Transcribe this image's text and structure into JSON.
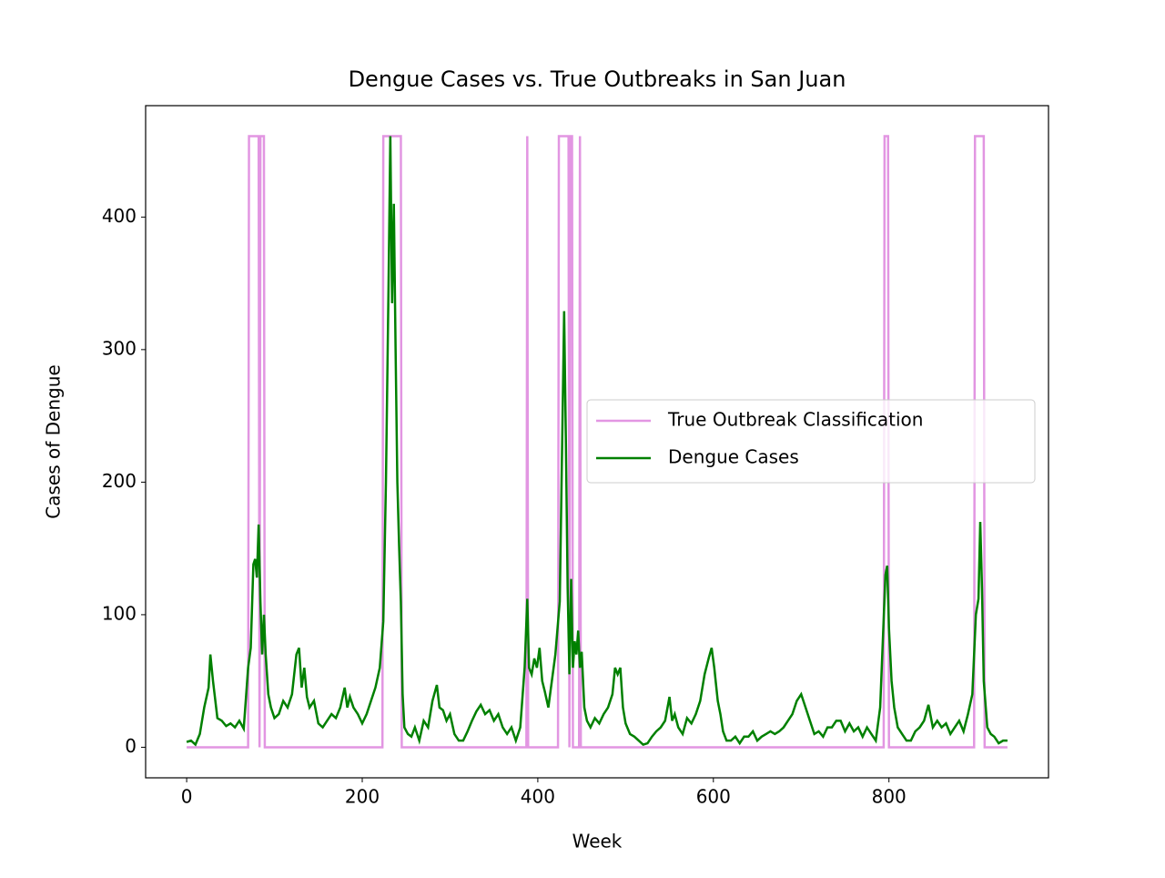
{
  "chart_data": {
    "type": "line",
    "title": "Dengue Cases vs. True Outbreaks in San Juan",
    "x_label": "Week",
    "y_label": "Cases of Dengue",
    "xlim": [
      -46.75,
      981.75
    ],
    "ylim": [
      -23.05,
      484.05
    ],
    "xticks": [
      0,
      200,
      400,
      600,
      800
    ],
    "yticks": [
      0,
      100,
      200,
      300,
      400
    ],
    "legend": "center right",
    "series": [
      {
        "name": "True Outbreak Classification",
        "color": "#e296e2",
        "x": [
          0,
          70,
          71,
          82,
          83,
          84,
          88,
          89,
          223,
          224,
          244,
          245,
          387,
          388,
          389,
          423,
          424,
          435,
          436,
          437,
          439,
          440,
          447,
          448,
          449,
          794,
          795,
          799,
          800,
          897,
          898,
          908,
          909,
          935
        ],
        "values": [
          0,
          0,
          461,
          461,
          0,
          461,
          461,
          0,
          0,
          461,
          461,
          0,
          0,
          461,
          0,
          0,
          461,
          461,
          0,
          461,
          461,
          0,
          0,
          461,
          0,
          0,
          461,
          461,
          0,
          0,
          461,
          461,
          0,
          0
        ]
      },
      {
        "name": "Dengue Cases",
        "color": "#008000",
        "x": [
          0,
          5,
          10,
          15,
          20,
          25,
          27,
          30,
          35,
          40,
          45,
          50,
          55,
          60,
          65,
          70,
          73,
          76,
          78,
          80,
          82,
          84,
          86,
          88,
          90,
          93,
          96,
          100,
          105,
          110,
          115,
          120,
          125,
          128,
          131,
          134,
          137,
          140,
          145,
          150,
          155,
          160,
          165,
          170,
          175,
          180,
          183,
          186,
          190,
          195,
          200,
          205,
          210,
          215,
          220,
          224,
          227,
          230,
          232,
          234,
          236,
          238,
          240,
          242,
          244,
          246,
          248,
          252,
          256,
          260,
          265,
          270,
          275,
          280,
          285,
          288,
          292,
          296,
          300,
          305,
          310,
          315,
          320,
          325,
          330,
          335,
          340,
          345,
          350,
          355,
          360,
          365,
          370,
          375,
          380,
          385,
          388,
          390,
          393,
          396,
          399,
          402,
          405,
          408,
          412,
          416,
          420,
          425,
          428,
          430,
          432,
          434,
          436,
          438,
          440,
          442,
          444,
          446,
          448,
          450,
          453,
          456,
          460,
          465,
          470,
          475,
          480,
          485,
          488,
          491,
          494,
          497,
          500,
          505,
          510,
          515,
          520,
          525,
          530,
          535,
          540,
          545,
          550,
          553,
          556,
          560,
          565,
          570,
          575,
          580,
          585,
          590,
          595,
          598,
          601,
          605,
          608,
          611,
          615,
          620,
          625,
          630,
          635,
          640,
          645,
          650,
          655,
          660,
          665,
          670,
          675,
          680,
          685,
          690,
          695,
          700,
          705,
          710,
          715,
          720,
          725,
          730,
          735,
          740,
          745,
          750,
          755,
          760,
          765,
          770,
          775,
          780,
          785,
          790,
          793,
          796,
          798,
          800,
          803,
          806,
          810,
          815,
          820,
          825,
          830,
          835,
          840,
          845,
          850,
          855,
          860,
          865,
          870,
          875,
          880,
          885,
          890,
          895,
          899,
          902,
          904,
          906,
          908,
          912,
          916,
          920,
          925,
          930,
          935
        ],
        "values": [
          4,
          5,
          2,
          10,
          30,
          45,
          70,
          50,
          22,
          20,
          16,
          18,
          15,
          20,
          14,
          60,
          75,
          138,
          142,
          128,
          168,
          110,
          70,
          100,
          70,
          40,
          30,
          22,
          25,
          35,
          30,
          40,
          70,
          75,
          45,
          60,
          38,
          30,
          35,
          18,
          15,
          20,
          25,
          22,
          30,
          45,
          30,
          38,
          30,
          25,
          18,
          25,
          35,
          45,
          60,
          95,
          200,
          350,
          461,
          335,
          410,
          300,
          200,
          152,
          110,
          40,
          15,
          10,
          8,
          15,
          5,
          20,
          15,
          35,
          47,
          30,
          28,
          20,
          25,
          10,
          5,
          5,
          12,
          20,
          27,
          32,
          25,
          28,
          20,
          25,
          15,
          10,
          15,
          5,
          15,
          60,
          112,
          60,
          55,
          67,
          60,
          75,
          50,
          42,
          30,
          50,
          70,
          110,
          240,
          329,
          230,
          120,
          55,
          127,
          60,
          80,
          70,
          88,
          60,
          72,
          30,
          20,
          15,
          22,
          18,
          25,
          30,
          40,
          60,
          55,
          60,
          30,
          18,
          10,
          8,
          5,
          2,
          3,
          8,
          12,
          15,
          20,
          38,
          20,
          25,
          15,
          10,
          22,
          18,
          25,
          35,
          55,
          68,
          75,
          60,
          35,
          25,
          12,
          5,
          5,
          8,
          3,
          8,
          8,
          12,
          5,
          8,
          10,
          12,
          10,
          12,
          15,
          20,
          25,
          35,
          40,
          30,
          20,
          10,
          12,
          8,
          15,
          15,
          20,
          20,
          12,
          18,
          12,
          15,
          8,
          15,
          10,
          5,
          30,
          80,
          130,
          137,
          90,
          50,
          30,
          15,
          10,
          5,
          5,
          12,
          15,
          20,
          32,
          15,
          20,
          15,
          18,
          10,
          15,
          20,
          12,
          25,
          40,
          100,
          112,
          170,
          120,
          50,
          15,
          10,
          8,
          3,
          5,
          5
        ]
      }
    ]
  }
}
